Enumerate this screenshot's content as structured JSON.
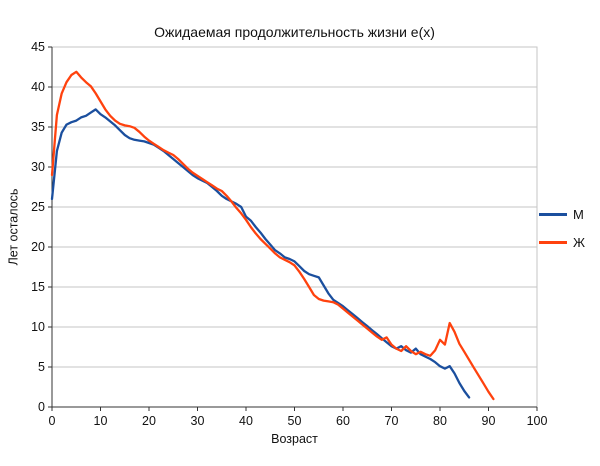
{
  "chart_data": {
    "type": "line",
    "title": "Ожидаемая продолжительность жизни e(x)",
    "xlabel": "Возраст",
    "ylabel": "Лет осталось",
    "xlim": [
      0,
      100
    ],
    "ylim": [
      0,
      45
    ],
    "xticks": [
      0,
      10,
      20,
      30,
      40,
      50,
      60,
      70,
      80,
      90,
      100
    ],
    "yticks": [
      0,
      5,
      10,
      15,
      20,
      25,
      30,
      35,
      40,
      45
    ],
    "grid": "horizontal",
    "legend_position": "right",
    "grid_color": "#c6c6c6",
    "axis_color": "#333333",
    "series": [
      {
        "name": "М",
        "color": "#1b4f9e",
        "x": [
          0,
          1,
          2,
          3,
          4,
          5,
          6,
          7,
          8,
          9,
          10,
          11,
          12,
          13,
          14,
          15,
          16,
          17,
          18,
          19,
          20,
          21,
          22,
          23,
          24,
          25,
          26,
          27,
          28,
          29,
          30,
          31,
          32,
          33,
          34,
          35,
          36,
          37,
          38,
          39,
          40,
          41,
          42,
          43,
          44,
          45,
          46,
          47,
          48,
          49,
          50,
          51,
          52,
          53,
          54,
          55,
          56,
          57,
          58,
          59,
          60,
          61,
          62,
          63,
          64,
          65,
          66,
          67,
          68,
          69,
          70,
          71,
          72,
          73,
          74,
          75,
          76,
          77,
          78,
          79,
          80,
          81,
          82,
          83,
          84,
          85,
          86
        ],
        "y": [
          26.0,
          32.0,
          34.3,
          35.3,
          35.6,
          35.8,
          36.2,
          36.4,
          36.8,
          37.2,
          36.6,
          36.2,
          35.7,
          35.2,
          34.6,
          34.0,
          33.6,
          33.4,
          33.3,
          33.2,
          33.0,
          32.8,
          32.4,
          32.0,
          31.5,
          31.0,
          30.5,
          30.0,
          29.5,
          29.0,
          28.6,
          28.3,
          28.0,
          27.5,
          27.0,
          26.4,
          26.0,
          25.7,
          25.4,
          25.0,
          23.8,
          23.3,
          22.5,
          21.8,
          21.0,
          20.3,
          19.6,
          19.2,
          18.7,
          18.5,
          18.2,
          17.6,
          17.0,
          16.6,
          16.4,
          16.2,
          15.2,
          14.2,
          13.4,
          13.0,
          12.6,
          12.1,
          11.6,
          11.1,
          10.6,
          10.1,
          9.6,
          9.1,
          8.6,
          8.1,
          7.6,
          7.3,
          7.6,
          7.1,
          6.8,
          7.3,
          6.6,
          6.3,
          6.0,
          5.6,
          5.1,
          4.8,
          5.1,
          4.2,
          3.0,
          2.0,
          1.2
        ]
      },
      {
        "name": "Ж",
        "color": "#ff420e",
        "x": [
          0,
          1,
          2,
          3,
          4,
          5,
          6,
          7,
          8,
          9,
          10,
          11,
          12,
          13,
          14,
          15,
          16,
          17,
          18,
          19,
          20,
          21,
          22,
          23,
          24,
          25,
          26,
          27,
          28,
          29,
          30,
          31,
          32,
          33,
          34,
          35,
          36,
          37,
          38,
          39,
          40,
          41,
          42,
          43,
          44,
          45,
          46,
          47,
          48,
          49,
          50,
          51,
          52,
          53,
          54,
          55,
          56,
          57,
          58,
          59,
          60,
          61,
          62,
          63,
          64,
          65,
          66,
          67,
          68,
          69,
          70,
          71,
          72,
          73,
          74,
          75,
          76,
          77,
          78,
          79,
          80,
          81,
          82,
          83,
          84,
          85,
          86,
          87,
          88,
          89,
          90,
          91
        ],
        "y": [
          29.0,
          36.5,
          39.2,
          40.6,
          41.5,
          41.9,
          41.2,
          40.6,
          40.1,
          39.2,
          38.2,
          37.2,
          36.4,
          35.8,
          35.4,
          35.2,
          35.1,
          34.9,
          34.4,
          33.8,
          33.3,
          32.9,
          32.5,
          32.1,
          31.8,
          31.5,
          31.0,
          30.4,
          29.8,
          29.3,
          28.9,
          28.5,
          28.1,
          27.7,
          27.3,
          27.0,
          26.4,
          25.7,
          24.9,
          24.2,
          23.4,
          22.5,
          21.7,
          21.0,
          20.4,
          19.8,
          19.2,
          18.7,
          18.4,
          18.1,
          17.7,
          16.9,
          16.0,
          15.0,
          14.0,
          13.5,
          13.3,
          13.2,
          13.1,
          12.8,
          12.3,
          11.8,
          11.3,
          10.8,
          10.3,
          9.8,
          9.3,
          8.8,
          8.4,
          8.7,
          7.8,
          7.3,
          7.0,
          7.6,
          7.0,
          6.6,
          6.9,
          6.6,
          6.4,
          7.1,
          8.4,
          7.8,
          10.5,
          9.4,
          7.9,
          6.9,
          5.9,
          4.9,
          3.9,
          2.9,
          1.9,
          1.0
        ]
      }
    ]
  }
}
